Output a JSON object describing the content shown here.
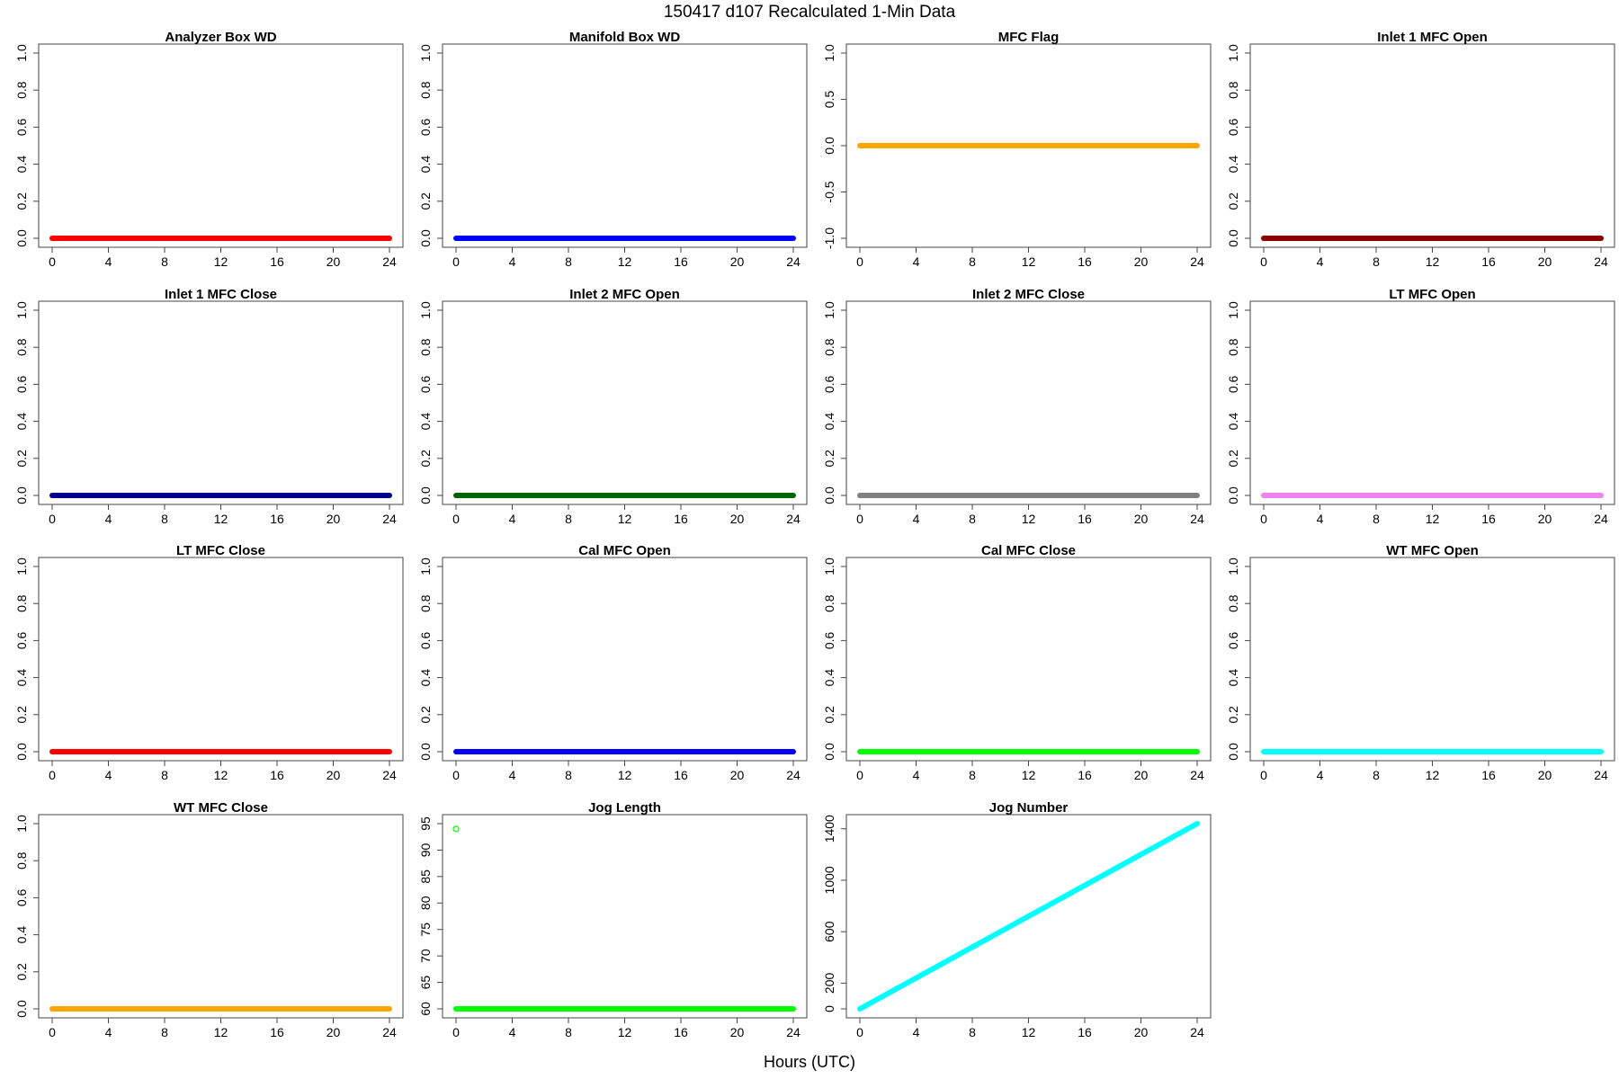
{
  "figure": {
    "title": "150417   d107   Recalculated 1-Min Data",
    "xlabel": "Hours (UTC)"
  },
  "chart_data": [
    {
      "type": "scatter",
      "title": "Analyzer Box WD",
      "color": "#ff0000",
      "series": "flat",
      "y": 0,
      "ylim": [
        0,
        1
      ],
      "yticks": [
        "0.0",
        "0.2",
        "0.4",
        "0.6",
        "0.8",
        "1.0"
      ],
      "xlim": [
        0,
        24
      ],
      "xticks": [
        "0",
        "4",
        "8",
        "12",
        "16",
        "20",
        "24"
      ]
    },
    {
      "type": "scatter",
      "title": "Manifold Box WD",
      "color": "#0000ff",
      "series": "flat",
      "y": 0,
      "ylim": [
        0,
        1
      ],
      "yticks": [
        "0.0",
        "0.2",
        "0.4",
        "0.6",
        "0.8",
        "1.0"
      ],
      "xlim": [
        0,
        24
      ],
      "xticks": [
        "0",
        "4",
        "8",
        "12",
        "16",
        "20",
        "24"
      ]
    },
    {
      "type": "scatter",
      "title": "MFC Flag",
      "color": "#ffa500",
      "series": "flat",
      "y": 0,
      "ylim": [
        -1,
        1
      ],
      "yticks": [
        "-1.0",
        "-0.5",
        "0.0",
        "0.5",
        "1.0"
      ],
      "xlim": [
        0,
        24
      ],
      "xticks": [
        "0",
        "4",
        "8",
        "12",
        "16",
        "20",
        "24"
      ]
    },
    {
      "type": "scatter",
      "title": "Inlet 1 MFC Open",
      "color": "#8b0000",
      "series": "flat",
      "y": 0,
      "ylim": [
        0,
        1
      ],
      "yticks": [
        "0.0",
        "0.2",
        "0.4",
        "0.6",
        "0.8",
        "1.0"
      ],
      "xlim": [
        0,
        24
      ],
      "xticks": [
        "0",
        "4",
        "8",
        "12",
        "16",
        "20",
        "24"
      ]
    },
    {
      "type": "scatter",
      "title": "Inlet 1 MFC Close",
      "color": "#00008b",
      "series": "flat",
      "y": 0,
      "ylim": [
        0,
        1
      ],
      "yticks": [
        "0.0",
        "0.2",
        "0.4",
        "0.6",
        "0.8",
        "1.0"
      ],
      "xlim": [
        0,
        24
      ],
      "xticks": [
        "0",
        "4",
        "8",
        "12",
        "16",
        "20",
        "24"
      ]
    },
    {
      "type": "scatter",
      "title": "Inlet 2 MFC Open",
      "color": "#006400",
      "series": "flat",
      "y": 0,
      "ylim": [
        0,
        1
      ],
      "yticks": [
        "0.0",
        "0.2",
        "0.4",
        "0.6",
        "0.8",
        "1.0"
      ],
      "xlim": [
        0,
        24
      ],
      "xticks": [
        "0",
        "4",
        "8",
        "12",
        "16",
        "20",
        "24"
      ]
    },
    {
      "type": "scatter",
      "title": "Inlet 2 MFC Close",
      "color": "#808080",
      "series": "flat",
      "y": 0,
      "ylim": [
        0,
        1
      ],
      "yticks": [
        "0.0",
        "0.2",
        "0.4",
        "0.6",
        "0.8",
        "1.0"
      ],
      "xlim": [
        0,
        24
      ],
      "xticks": [
        "0",
        "4",
        "8",
        "12",
        "16",
        "20",
        "24"
      ]
    },
    {
      "type": "scatter",
      "title": "LT MFC Open",
      "color": "#ee82ee",
      "series": "flat",
      "y": 0,
      "ylim": [
        0,
        1
      ],
      "yticks": [
        "0.0",
        "0.2",
        "0.4",
        "0.6",
        "0.8",
        "1.0"
      ],
      "xlim": [
        0,
        24
      ],
      "xticks": [
        "0",
        "4",
        "8",
        "12",
        "16",
        "20",
        "24"
      ]
    },
    {
      "type": "scatter",
      "title": "LT MFC Close",
      "color": "#ff0000",
      "series": "flat",
      "y": 0,
      "ylim": [
        0,
        1
      ],
      "yticks": [
        "0.0",
        "0.2",
        "0.4",
        "0.6",
        "0.8",
        "1.0"
      ],
      "xlim": [
        0,
        24
      ],
      "xticks": [
        "0",
        "4",
        "8",
        "12",
        "16",
        "20",
        "24"
      ]
    },
    {
      "type": "scatter",
      "title": "Cal MFC Open",
      "color": "#0000ff",
      "series": "flat",
      "y": 0,
      "ylim": [
        0,
        1
      ],
      "yticks": [
        "0.0",
        "0.2",
        "0.4",
        "0.6",
        "0.8",
        "1.0"
      ],
      "xlim": [
        0,
        24
      ],
      "xticks": [
        "0",
        "4",
        "8",
        "12",
        "16",
        "20",
        "24"
      ]
    },
    {
      "type": "scatter",
      "title": "Cal MFC Close",
      "color": "#00ff00",
      "series": "flat",
      "y": 0,
      "ylim": [
        0,
        1
      ],
      "yticks": [
        "0.0",
        "0.2",
        "0.4",
        "0.6",
        "0.8",
        "1.0"
      ],
      "xlim": [
        0,
        24
      ],
      "xticks": [
        "0",
        "4",
        "8",
        "12",
        "16",
        "20",
        "24"
      ]
    },
    {
      "type": "scatter",
      "title": "WT MFC Open",
      "color": "#00ffff",
      "series": "flat",
      "y": 0,
      "ylim": [
        0,
        1
      ],
      "yticks": [
        "0.0",
        "0.2",
        "0.4",
        "0.6",
        "0.8",
        "1.0"
      ],
      "xlim": [
        0,
        24
      ],
      "xticks": [
        "0",
        "4",
        "8",
        "12",
        "16",
        "20",
        "24"
      ]
    },
    {
      "type": "scatter",
      "title": "WT MFC Close",
      "color": "#ffa500",
      "series": "flat",
      "y": 0,
      "ylim": [
        0,
        1
      ],
      "yticks": [
        "0.0",
        "0.2",
        "0.4",
        "0.6",
        "0.8",
        "1.0"
      ],
      "xlim": [
        0,
        24
      ],
      "xticks": [
        "0",
        "4",
        "8",
        "12",
        "16",
        "20",
        "24"
      ]
    },
    {
      "type": "scatter",
      "title": "Jog Length",
      "color": "#00ff00",
      "series": "flat",
      "y": 60,
      "outliers": [
        {
          "x": 0,
          "y": 94
        }
      ],
      "ylim": [
        60,
        95
      ],
      "yticks": [
        "60",
        "65",
        "70",
        "75",
        "80",
        "85",
        "90",
        "95"
      ],
      "xlim": [
        0,
        24
      ],
      "xticks": [
        "0",
        "4",
        "8",
        "12",
        "16",
        "20",
        "24"
      ]
    },
    {
      "type": "scatter",
      "title": "Jog Number",
      "color": "#00ffff",
      "series": "linear",
      "y_start": 0,
      "y_end": 1440,
      "ylim": [
        0,
        1440
      ],
      "yticks": [
        "0",
        "200",
        "600",
        "1000",
        "1400"
      ],
      "xlim": [
        0,
        24
      ],
      "xticks": [
        "0",
        "4",
        "8",
        "12",
        "16",
        "20",
        "24"
      ]
    }
  ]
}
